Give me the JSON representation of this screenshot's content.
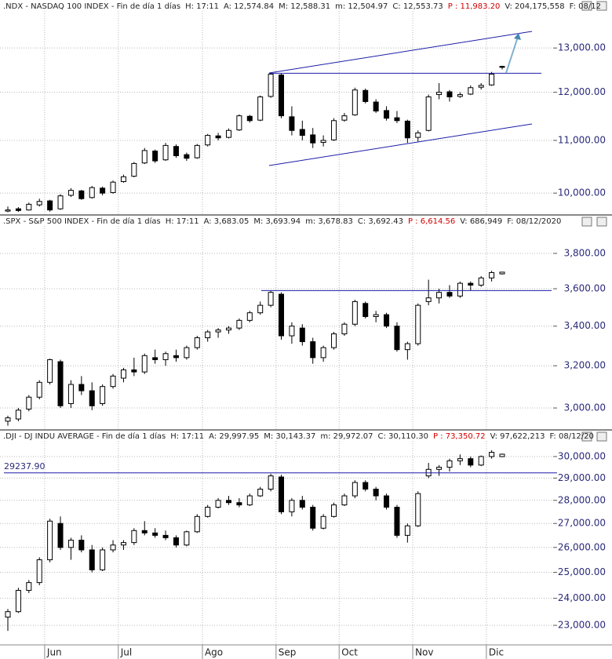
{
  "chart_data": [
    {
      "type": "candlestick",
      "header": {
        "name": ".NDX - NASDAQ 100 INDEX - Fin de día 1 días",
        "time": "H: 17:11",
        "open": "A: 12,574.84",
        "high": "M: 12,588.31",
        "low": "m: 12,504.97",
        "close": "C: 12,553.73",
        "change": "P : 11,983.20",
        "volume": "V: 204,175,558",
        "date": "F: 08/12"
      },
      "log_scale": true,
      "ylim": [
        9640,
        13880
      ],
      "yticks": [
        {
          "value": 10000,
          "label": "10,000.00"
        },
        {
          "value": 11000,
          "label": "11,000.00"
        },
        {
          "value": 12000,
          "label": "12,000.00"
        },
        {
          "value": 13000,
          "label": "13,000.00"
        }
      ],
      "hlines": [
        12420
      ],
      "ohlc": [
        [
          9680,
          9760,
          9660,
          9700
        ],
        [
          9720,
          9750,
          9665,
          9690
        ],
        [
          9700,
          9830,
          9690,
          9800
        ],
        [
          9790,
          9900,
          9760,
          9850
        ],
        [
          9860,
          9880,
          9670,
          9700
        ],
        [
          9720,
          9980,
          9700,
          9950
        ],
        [
          9960,
          10090,
          9930,
          10050
        ],
        [
          10040,
          10060,
          9880,
          9900
        ],
        [
          9920,
          10130,
          9900,
          10100
        ],
        [
          10090,
          10120,
          9960,
          10000
        ],
        [
          10010,
          10230,
          9990,
          10200
        ],
        [
          10210,
          10340,
          10190,
          10300
        ],
        [
          10310,
          10580,
          10290,
          10550
        ],
        [
          10560,
          10850,
          10540,
          10800
        ],
        [
          10790,
          10820,
          10560,
          10600
        ],
        [
          10620,
          10950,
          10600,
          10900
        ],
        [
          10880,
          10920,
          10660,
          10700
        ],
        [
          10720,
          10760,
          10600,
          10650
        ],
        [
          10660,
          10930,
          10640,
          10900
        ],
        [
          10910,
          11130,
          10880,
          11100
        ],
        [
          11090,
          11150,
          11000,
          11050
        ],
        [
          11060,
          11240,
          11040,
          11200
        ],
        [
          11210,
          11530,
          11190,
          11500
        ],
        [
          11490,
          11520,
          11360,
          11400
        ],
        [
          11410,
          11930,
          11390,
          11900
        ],
        [
          11910,
          12430,
          11880,
          12400
        ],
        [
          12380,
          12420,
          11450,
          11500
        ],
        [
          11480,
          11700,
          11100,
          11200
        ],
        [
          11220,
          11400,
          11000,
          11100
        ],
        [
          11110,
          11250,
          10850,
          10950
        ],
        [
          10960,
          11100,
          10880,
          11000
        ],
        [
          11010,
          11450,
          10990,
          11400
        ],
        [
          11410,
          11560,
          11380,
          11500
        ],
        [
          11520,
          12100,
          11500,
          12050
        ],
        [
          12040,
          12080,
          11760,
          11800
        ],
        [
          11790,
          11850,
          11560,
          11600
        ],
        [
          11610,
          11700,
          11400,
          11450
        ],
        [
          11460,
          11600,
          11350,
          11400
        ],
        [
          11390,
          11420,
          10950,
          11050
        ],
        [
          11060,
          11200,
          10980,
          11150
        ],
        [
          11200,
          11950,
          11180,
          11900
        ],
        [
          11950,
          12200,
          11850,
          12000
        ],
        [
          12010,
          12050,
          11800,
          11900
        ],
        [
          11910,
          12000,
          11880,
          11950
        ],
        [
          11960,
          12150,
          11940,
          12100
        ],
        [
          12110,
          12200,
          12060,
          12150
        ],
        [
          12160,
          12450,
          12140,
          12400
        ],
        [
          12574.84,
          12588.31,
          12504.97,
          12553.73
        ]
      ]
    },
    {
      "type": "candlestick",
      "header": {
        "name": ".SPX - S&P 500 INDEX - Fin de día 1 días",
        "time": "H: 17:11",
        "open": "A: 3,683.05",
        "high": "M: 3,693.94",
        "low": "m: 3,678.83",
        "close": "C: 3,692.43",
        "change": "P : 6,614.56",
        "volume": "V: 686,949",
        "date": "F: 08/12/2020"
      },
      "log_scale": true,
      "ylim": [
        2908,
        3958
      ],
      "yticks": [
        {
          "value": 3000,
          "label": "3,000.00"
        },
        {
          "value": 3200,
          "label": "3,200.00"
        },
        {
          "value": 3400,
          "label": "3,400.00"
        },
        {
          "value": 3600,
          "label": "3,600.00"
        },
        {
          "value": 3800,
          "label": "3,800.00"
        }
      ],
      "hlines": [
        3590
      ],
      "ohlc": [
        [
          2940,
          2965,
          2920,
          2955
        ],
        [
          2950,
          3000,
          2940,
          2990
        ],
        [
          2995,
          3060,
          2985,
          3050
        ],
        [
          3050,
          3130,
          3040,
          3120
        ],
        [
          3120,
          3235,
          3110,
          3230
        ],
        [
          3220,
          3230,
          3000,
          3010
        ],
        [
          3020,
          3130,
          3000,
          3110
        ],
        [
          3110,
          3150,
          3060,
          3080
        ],
        [
          3080,
          3120,
          2990,
          3010
        ],
        [
          3020,
          3110,
          3010,
          3100
        ],
        [
          3100,
          3160,
          3090,
          3150
        ],
        [
          3140,
          3190,
          3120,
          3180
        ],
        [
          3180,
          3240,
          3150,
          3170
        ],
        [
          3170,
          3260,
          3160,
          3250
        ],
        [
          3240,
          3280,
          3210,
          3230
        ],
        [
          3230,
          3270,
          3200,
          3260
        ],
        [
          3250,
          3280,
          3220,
          3240
        ],
        [
          3240,
          3300,
          3230,
          3290
        ],
        [
          3290,
          3350,
          3280,
          3340
        ],
        [
          3340,
          3380,
          3320,
          3370
        ],
        [
          3370,
          3390,
          3340,
          3380
        ],
        [
          3380,
          3400,
          3360,
          3390
        ],
        [
          3390,
          3440,
          3380,
          3430
        ],
        [
          3430,
          3480,
          3420,
          3470
        ],
        [
          3470,
          3530,
          3460,
          3510
        ],
        [
          3510,
          3590,
          3500,
          3580
        ],
        [
          3570,
          3580,
          3330,
          3350
        ],
        [
          3350,
          3420,
          3310,
          3400
        ],
        [
          3390,
          3410,
          3300,
          3320
        ],
        [
          3320,
          3340,
          3210,
          3240
        ],
        [
          3240,
          3300,
          3220,
          3290
        ],
        [
          3290,
          3370,
          3280,
          3360
        ],
        [
          3360,
          3420,
          3350,
          3410
        ],
        [
          3410,
          3540,
          3400,
          3530
        ],
        [
          3520,
          3530,
          3440,
          3450
        ],
        [
          3450,
          3480,
          3420,
          3460
        ],
        [
          3460,
          3470,
          3390,
          3400
        ],
        [
          3400,
          3420,
          3270,
          3280
        ],
        [
          3280,
          3320,
          3230,
          3310
        ],
        [
          3310,
          3520,
          3300,
          3510
        ],
        [
          3530,
          3650,
          3510,
          3550
        ],
        [
          3550,
          3600,
          3520,
          3580
        ],
        [
          3580,
          3620,
          3550,
          3560
        ],
        [
          3560,
          3640,
          3550,
          3630
        ],
        [
          3630,
          3640,
          3590,
          3620
        ],
        [
          3620,
          3670,
          3610,
          3660
        ],
        [
          3660,
          3700,
          3640,
          3690
        ],
        [
          3683.05,
          3693.94,
          3678.83,
          3692.43
        ]
      ]
    },
    {
      "type": "candlestick",
      "header": {
        "name": ".DJI - DJ INDU AVERAGE - Fin de día 1 días",
        "time": "H: 17:11",
        "open": "A: 29,997.95",
        "high": "M: 30,143.37",
        "low": "m: 29,972.07",
        "close": "C: 30,110.30",
        "change": "P : 73,350.72",
        "volume": "V: 97,622,213",
        "date": "F: 08/12/20"
      },
      "log_scale": true,
      "ylim": [
        22580,
        30710
      ],
      "yticks": [
        {
          "value": 23000,
          "label": "23,000.00"
        },
        {
          "value": 24000,
          "label": "24,000.00"
        },
        {
          "value": 25000,
          "label": "25,000.00"
        },
        {
          "value": 26000,
          "label": "26,000.00"
        },
        {
          "value": 27000,
          "label": "27,000.00"
        },
        {
          "value": 28000,
          "label": "28,000.00"
        },
        {
          "value": 29000,
          "label": "29,000.00"
        },
        {
          "value": 30000,
          "label": "30,000.00"
        }
      ],
      "hlines": [
        {
          "value": 29237.9,
          "label": "29237.90"
        }
      ],
      "categories": [
        null,
        null,
        null,
        null,
        "Jun",
        null,
        null,
        null,
        null,
        null,
        null,
        "Jul",
        null,
        null,
        null,
        null,
        null,
        null,
        null,
        "Ago",
        null,
        null,
        null,
        null,
        null,
        null,
        "Sep",
        null,
        null,
        null,
        null,
        null,
        "Oct",
        null,
        null,
        null,
        null,
        null,
        null,
        "Nov",
        null,
        null,
        null,
        null,
        null,
        null,
        "Dic",
        null
      ],
      "ohlc": [
        [
          23300,
          23600,
          22800,
          23500
        ],
        [
          23500,
          24400,
          23450,
          24300
        ],
        [
          24300,
          24700,
          24200,
          24600
        ],
        [
          24600,
          25600,
          24500,
          25500
        ],
        [
          25500,
          27200,
          25400,
          27100
        ],
        [
          27000,
          27300,
          25900,
          26000
        ],
        [
          26000,
          26400,
          25500,
          26300
        ],
        [
          26300,
          26500,
          25800,
          25900
        ],
        [
          25900,
          26100,
          25000,
          25100
        ],
        [
          25100,
          26000,
          25050,
          25900
        ],
        [
          25900,
          26300,
          25800,
          26100
        ],
        [
          26100,
          26300,
          25900,
          26200
        ],
        [
          26200,
          26800,
          26100,
          26700
        ],
        [
          26700,
          27100,
          26500,
          26600
        ],
        [
          26600,
          26800,
          26400,
          26500
        ],
        [
          26500,
          26700,
          26300,
          26400
        ],
        [
          26400,
          26500,
          26000,
          26100
        ],
        [
          26100,
          26700,
          26050,
          26650
        ],
        [
          26650,
          27400,
          26600,
          27300
        ],
        [
          27300,
          27800,
          27250,
          27700
        ],
        [
          27700,
          28100,
          27650,
          28000
        ],
        [
          28000,
          28200,
          27800,
          27900
        ],
        [
          27900,
          28100,
          27700,
          27800
        ],
        [
          27800,
          28300,
          27750,
          28200
        ],
        [
          28200,
          28600,
          28150,
          28500
        ],
        [
          28500,
          29200,
          28400,
          29100
        ],
        [
          29050,
          29150,
          27400,
          27500
        ],
        [
          27500,
          28100,
          27300,
          28000
        ],
        [
          28000,
          28200,
          27600,
          27700
        ],
        [
          27700,
          27800,
          26700,
          26800
        ],
        [
          26800,
          27400,
          26750,
          27300
        ],
        [
          27300,
          27900,
          27250,
          27800
        ],
        [
          27800,
          28300,
          27750,
          28200
        ],
        [
          28200,
          28900,
          28100,
          28800
        ],
        [
          28800,
          28900,
          28400,
          28500
        ],
        [
          28500,
          28600,
          28000,
          28200
        ],
        [
          28200,
          28300,
          27600,
          27700
        ],
        [
          27700,
          27800,
          26400,
          26500
        ],
        [
          26500,
          27000,
          26200,
          26900
        ],
        [
          26900,
          28400,
          26850,
          28300
        ],
        [
          29100,
          29700,
          29000,
          29400
        ],
        [
          29400,
          29600,
          29100,
          29500
        ],
        [
          29500,
          29900,
          29300,
          29800
        ],
        [
          29800,
          30100,
          29600,
          29900
        ],
        [
          29900,
          30000,
          29500,
          29600
        ],
        [
          29600,
          30050,
          29550,
          30000
        ],
        [
          30000,
          30300,
          29900,
          30200
        ],
        [
          29997.95,
          30143.37,
          29972.07,
          30110.3
        ]
      ]
    }
  ]
}
